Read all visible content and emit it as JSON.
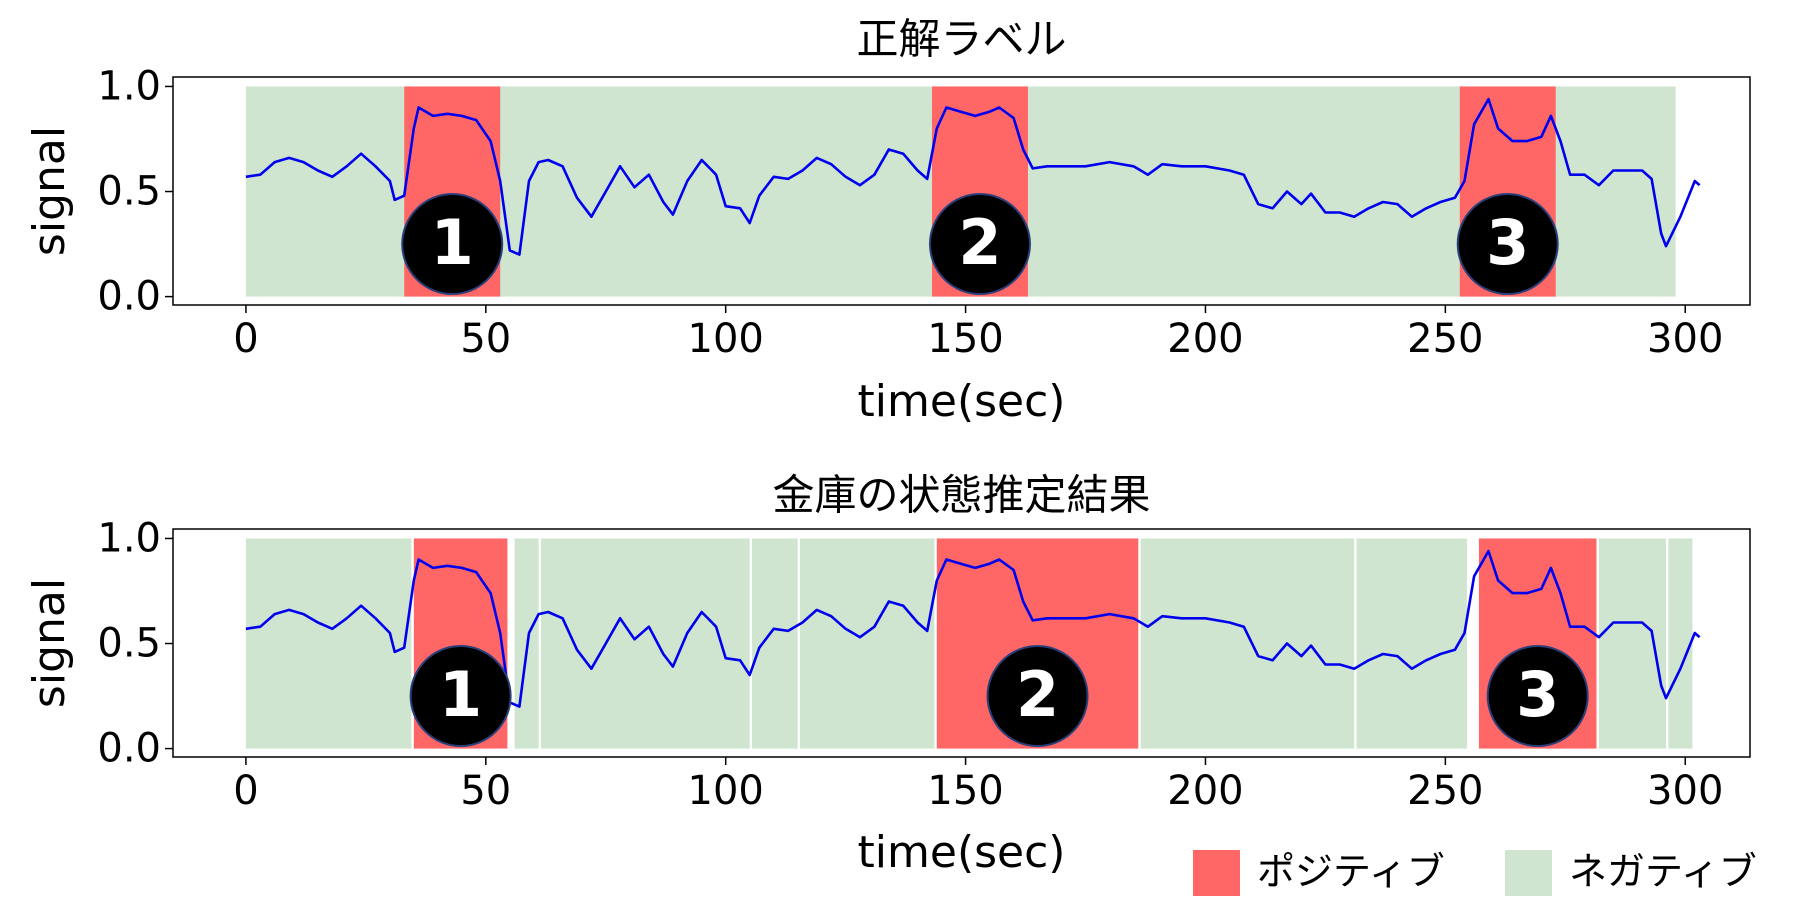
{
  "chart_data": [
    {
      "type": "line",
      "title": "正解ラベル",
      "xlabel": "time(sec)",
      "ylabel": "signal",
      "xlim": [
        -15.2,
        313.5
      ],
      "ylim": [
        -0.04,
        1.045
      ],
      "xticks": [
        0,
        50,
        100,
        150,
        200,
        250,
        300
      ],
      "yticks": [
        {
          "value": 0,
          "label": "0.0"
        },
        {
          "value": 0.5,
          "label": "0.5"
        },
        {
          "value": 1,
          "label": "1.0"
        }
      ],
      "x": [
        0,
        3,
        6,
        9,
        12,
        15,
        18,
        21,
        24,
        27,
        30,
        31,
        33,
        35,
        36,
        39,
        42,
        45,
        48,
        51,
        53,
        55,
        57,
        59,
        61,
        63,
        66,
        69,
        72,
        75,
        78,
        81,
        84,
        87,
        89,
        92,
        95,
        98,
        100,
        103,
        105,
        107,
        110,
        113,
        116,
        119,
        122,
        125,
        128,
        131,
        134,
        137,
        140,
        142,
        144,
        146,
        149,
        152,
        155,
        157,
        160,
        162,
        164,
        167,
        170,
        175,
        180,
        185,
        188,
        191,
        195,
        200,
        205,
        208,
        211,
        214,
        217,
        220,
        222,
        225,
        228,
        231,
        234,
        237,
        240,
        243,
        246,
        249,
        252,
        254,
        256,
        258,
        259,
        261,
        264,
        267,
        270,
        272,
        274,
        276,
        279,
        282,
        285,
        288,
        291,
        293,
        295,
        296,
        299,
        302,
        303
      ],
      "series": [
        {
          "color": "#0000ee",
          "values": [
            0.57,
            0.58,
            0.64,
            0.66,
            0.64,
            0.6,
            0.57,
            0.62,
            0.68,
            0.62,
            0.55,
            0.46,
            0.48,
            0.8,
            0.9,
            0.86,
            0.87,
            0.86,
            0.84,
            0.74,
            0.55,
            0.22,
            0.2,
            0.55,
            0.64,
            0.65,
            0.62,
            0.47,
            0.38,
            0.5,
            0.62,
            0.52,
            0.58,
            0.45,
            0.39,
            0.55,
            0.65,
            0.58,
            0.43,
            0.42,
            0.35,
            0.48,
            0.57,
            0.56,
            0.6,
            0.66,
            0.63,
            0.57,
            0.53,
            0.58,
            0.7,
            0.68,
            0.6,
            0.56,
            0.8,
            0.9,
            0.88,
            0.86,
            0.88,
            0.9,
            0.85,
            0.7,
            0.61,
            0.62,
            0.62,
            0.62,
            0.64,
            0.62,
            0.58,
            0.63,
            0.62,
            0.62,
            0.6,
            0.58,
            0.44,
            0.42,
            0.5,
            0.44,
            0.49,
            0.4,
            0.4,
            0.38,
            0.42,
            0.45,
            0.44,
            0.38,
            0.42,
            0.45,
            0.47,
            0.55,
            0.82,
            0.9,
            0.94,
            0.8,
            0.74,
            0.74,
            0.76,
            0.86,
            0.74,
            0.58,
            0.58,
            0.53,
            0.6,
            0.6,
            0.6,
            0.56,
            0.3,
            0.24,
            0.38,
            0.55,
            0.53
          ]
        }
      ],
      "negative_spans": [
        {
          "start": 0,
          "end": 298
        }
      ],
      "positive_spans": [
        {
          "start": 33,
          "end": 53,
          "label": "1"
        },
        {
          "start": 143,
          "end": 163,
          "label": "2"
        },
        {
          "start": 253,
          "end": 273,
          "label": "3"
        }
      ]
    },
    {
      "type": "line",
      "title": "金庫の状態推定結果",
      "xlabel": "time(sec)",
      "ylabel": "signal",
      "xlim": [
        -15.2,
        313.5
      ],
      "ylim": [
        -0.04,
        1.045
      ],
      "xticks": [
        0,
        50,
        100,
        150,
        200,
        250,
        300
      ],
      "yticks": [
        {
          "value": 0,
          "label": "0.0"
        },
        {
          "value": 0.5,
          "label": "0.5"
        },
        {
          "value": 1,
          "label": "1.0"
        }
      ],
      "x": [
        0,
        3,
        6,
        9,
        12,
        15,
        18,
        21,
        24,
        27,
        30,
        31,
        33,
        35,
        36,
        39,
        42,
        45,
        48,
        51,
        53,
        55,
        57,
        59,
        61,
        63,
        66,
        69,
        72,
        75,
        78,
        81,
        84,
        87,
        89,
        92,
        95,
        98,
        100,
        103,
        105,
        107,
        110,
        113,
        116,
        119,
        122,
        125,
        128,
        131,
        134,
        137,
        140,
        142,
        144,
        146,
        149,
        152,
        155,
        157,
        160,
        162,
        164,
        167,
        170,
        175,
        180,
        185,
        188,
        191,
        195,
        200,
        205,
        208,
        211,
        214,
        217,
        220,
        222,
        225,
        228,
        231,
        234,
        237,
        240,
        243,
        246,
        249,
        252,
        254,
        256,
        258,
        259,
        261,
        264,
        267,
        270,
        272,
        274,
        276,
        279,
        282,
        285,
        288,
        291,
        293,
        295,
        296,
        299,
        302,
        303
      ],
      "series": [
        {
          "color": "#0000ee",
          "values": [
            0.57,
            0.58,
            0.64,
            0.66,
            0.64,
            0.6,
            0.57,
            0.62,
            0.68,
            0.62,
            0.55,
            0.46,
            0.48,
            0.8,
            0.9,
            0.86,
            0.87,
            0.86,
            0.84,
            0.74,
            0.55,
            0.22,
            0.2,
            0.55,
            0.64,
            0.65,
            0.62,
            0.47,
            0.38,
            0.5,
            0.62,
            0.52,
            0.58,
            0.45,
            0.39,
            0.55,
            0.65,
            0.58,
            0.43,
            0.42,
            0.35,
            0.48,
            0.57,
            0.56,
            0.6,
            0.66,
            0.63,
            0.57,
            0.53,
            0.58,
            0.7,
            0.68,
            0.6,
            0.56,
            0.8,
            0.9,
            0.88,
            0.86,
            0.88,
            0.9,
            0.85,
            0.7,
            0.61,
            0.62,
            0.62,
            0.62,
            0.64,
            0.62,
            0.58,
            0.63,
            0.62,
            0.62,
            0.6,
            0.58,
            0.44,
            0.42,
            0.5,
            0.44,
            0.49,
            0.4,
            0.4,
            0.38,
            0.42,
            0.45,
            0.44,
            0.38,
            0.42,
            0.45,
            0.47,
            0.55,
            0.82,
            0.9,
            0.94,
            0.8,
            0.74,
            0.74,
            0.76,
            0.86,
            0.74,
            0.58,
            0.58,
            0.53,
            0.6,
            0.6,
            0.6,
            0.56,
            0.3,
            0.24,
            0.38,
            0.55,
            0.53
          ]
        }
      ],
      "negative_spans": [
        {
          "start": 0,
          "end": 34.5
        },
        {
          "start": 56,
          "end": 61
        },
        {
          "start": 61.5,
          "end": 105
        },
        {
          "start": 105.5,
          "end": 115
        },
        {
          "start": 115.5,
          "end": 143.5
        },
        {
          "start": 186.5,
          "end": 231
        },
        {
          "start": 231.5,
          "end": 254.5
        },
        {
          "start": 282,
          "end": 296
        },
        {
          "start": 296.5,
          "end": 301.5
        }
      ],
      "positive_spans": [
        {
          "start": 35,
          "end": 54.5,
          "label": "1"
        },
        {
          "start": 144,
          "end": 186,
          "label": "2"
        },
        {
          "start": 257,
          "end": 281.5,
          "label": "3"
        }
      ],
      "legend": [
        {
          "name": "ポジティブ",
          "color": "#ff6666"
        },
        {
          "name": "ネガティブ",
          "color": "#cfe5cf"
        }
      ]
    }
  ]
}
